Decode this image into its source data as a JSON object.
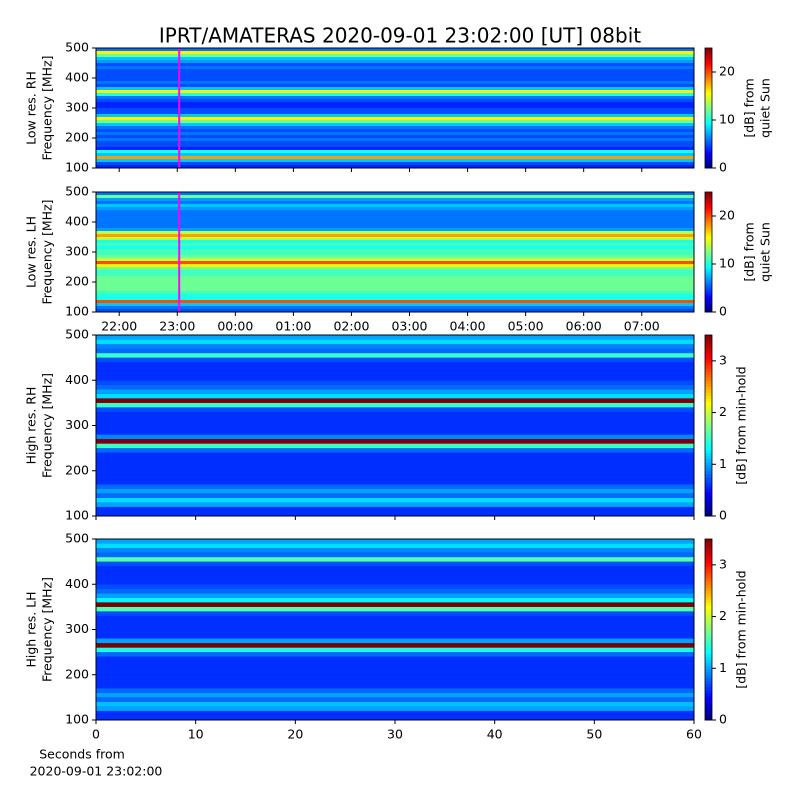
{
  "title": "IPRT/AMATERAS 2020-09-01 23:02:00 [UT]   08bit",
  "chart_data": [
    {
      "type": "heatmap",
      "cmap": "jet",
      "ylabel": [
        "Low res. RH",
        "Frequency [MHz]"
      ],
      "xlim": [
        21.6,
        31.9
      ],
      "xticks": [
        22,
        23,
        24,
        25,
        26,
        27,
        28,
        29,
        30,
        31
      ],
      "ylim": [
        100,
        500
      ],
      "yticks": [
        100,
        200,
        300,
        400,
        500
      ],
      "marker_x": 23.033,
      "marker_color": "#ff00ff",
      "y": [
        105,
        115,
        125,
        135,
        145,
        155,
        165,
        175,
        185,
        195,
        205,
        215,
        225,
        235,
        245,
        255,
        265,
        275,
        285,
        295,
        305,
        315,
        325,
        335,
        345,
        355,
        365,
        375,
        385,
        395,
        405,
        415,
        425,
        435,
        445,
        455,
        465,
        475,
        485,
        495
      ],
      "values": [
        4,
        5,
        8,
        18,
        8,
        10,
        4,
        5,
        5,
        6,
        5,
        6,
        5,
        6,
        8,
        12,
        16,
        8,
        5,
        5,
        4,
        4,
        5,
        6,
        10,
        16,
        8,
        5,
        6,
        5,
        5,
        5,
        5,
        6,
        5,
        7,
        8,
        12,
        16,
        6
      ],
      "colorbar": {
        "label": [
          "[dB] from",
          "quiet Sun"
        ],
        "lim": [
          0,
          25
        ],
        "ticks": [
          0,
          10,
          20
        ]
      }
    },
    {
      "type": "heatmap",
      "cmap": "jet",
      "ylabel": [
        "Low res. LH",
        "Frequency [MHz]"
      ],
      "xlim": [
        21.6,
        31.9
      ],
      "xticks": [
        {
          "value": 22,
          "label": "22:00"
        },
        {
          "value": 23,
          "label": "23:00"
        },
        {
          "value": 24,
          "label": "00:00"
        },
        {
          "value": 25,
          "label": "01:00"
        },
        {
          "value": 26,
          "label": "02:00"
        },
        {
          "value": 27,
          "label": "03:00"
        },
        {
          "value": 28,
          "label": "04:00"
        },
        {
          "value": 29,
          "label": "05:00"
        },
        {
          "value": 30,
          "label": "06:00"
        },
        {
          "value": 31,
          "label": "07:00"
        }
      ],
      "ylim": [
        100,
        500
      ],
      "yticks": [
        100,
        200,
        300,
        400,
        500
      ],
      "marker_x": 23.033,
      "marker_color": "#ff00ff",
      "y": [
        105,
        115,
        125,
        135,
        145,
        155,
        165,
        175,
        185,
        195,
        205,
        215,
        225,
        235,
        245,
        255,
        265,
        275,
        285,
        295,
        305,
        315,
        325,
        335,
        345,
        355,
        365,
        375,
        385,
        395,
        405,
        415,
        425,
        435,
        445,
        455,
        465,
        475,
        485,
        495
      ],
      "values": [
        5,
        6,
        8,
        20,
        10,
        10,
        11,
        12,
        12,
        12,
        12,
        12,
        11,
        11,
        12,
        16,
        20,
        14,
        12,
        11,
        11,
        10,
        11,
        10,
        14,
        18,
        14,
        7,
        6,
        6,
        6,
        6,
        6,
        6,
        7,
        8,
        6,
        7,
        12,
        6
      ],
      "colorbar": {
        "label": [
          "[dB] from",
          "quiet Sun"
        ],
        "lim": [
          0,
          25
        ],
        "ticks": [
          0,
          10,
          20
        ]
      }
    },
    {
      "type": "heatmap",
      "cmap": "jet",
      "ylabel": [
        "High res. RH",
        "Frequency [MHz]"
      ],
      "xlim": [
        0,
        60
      ],
      "xticks": [
        0,
        10,
        20,
        30,
        40,
        50,
        60
      ],
      "ylim": [
        100,
        500
      ],
      "yticks": [
        100,
        200,
        300,
        400,
        500
      ],
      "y": [
        105,
        115,
        125,
        135,
        145,
        155,
        165,
        175,
        185,
        195,
        205,
        215,
        225,
        235,
        245,
        255,
        265,
        275,
        285,
        295,
        305,
        315,
        325,
        335,
        345,
        355,
        365,
        375,
        385,
        395,
        405,
        415,
        425,
        435,
        445,
        455,
        465,
        475,
        485,
        495
      ],
      "values": [
        0.6,
        0.6,
        1.0,
        1.2,
        0.8,
        1.0,
        0.8,
        0.6,
        0.6,
        0.6,
        0.6,
        0.6,
        0.6,
        0.6,
        0.8,
        1.5,
        3.5,
        0.9,
        0.6,
        0.6,
        0.6,
        0.6,
        0.6,
        0.7,
        1.5,
        3.5,
        1.2,
        1.0,
        0.8,
        0.7,
        0.6,
        0.6,
        0.6,
        0.6,
        0.7,
        1.5,
        0.8,
        0.9,
        1.2,
        1.0
      ],
      "colorbar": {
        "label": [
          "[dB] from min-hold"
        ],
        "lim": [
          0,
          3.5
        ],
        "ticks": [
          0,
          1,
          2,
          3
        ]
      }
    },
    {
      "type": "heatmap",
      "cmap": "jet",
      "ylabel": [
        "High res. LH",
        "Frequency [MHz]"
      ],
      "xlim": [
        0,
        60
      ],
      "xticks": [
        0,
        10,
        20,
        30,
        40,
        50,
        60
      ],
      "ylim": [
        100,
        500
      ],
      "yticks": [
        100,
        200,
        300,
        400,
        500
      ],
      "xlabel": [
        "Seconds from",
        "2020-09-01 23:02:00"
      ],
      "y": [
        105,
        115,
        125,
        135,
        145,
        155,
        165,
        175,
        185,
        195,
        205,
        215,
        225,
        235,
        245,
        255,
        265,
        275,
        285,
        295,
        305,
        315,
        325,
        335,
        345,
        355,
        365,
        375,
        385,
        395,
        405,
        415,
        425,
        435,
        445,
        455,
        465,
        475,
        485,
        495
      ],
      "values": [
        0.6,
        0.6,
        1.0,
        1.1,
        0.8,
        1.0,
        0.8,
        0.6,
        0.6,
        0.6,
        0.6,
        0.6,
        0.6,
        0.6,
        0.8,
        1.4,
        3.5,
        1.0,
        0.6,
        0.6,
        0.6,
        0.6,
        0.6,
        0.7,
        1.6,
        3.5,
        1.3,
        1.0,
        0.8,
        0.7,
        0.6,
        0.6,
        0.6,
        0.6,
        0.7,
        1.6,
        0.8,
        0.9,
        1.2,
        1.0
      ],
      "colorbar": {
        "label": [
          "[dB] from min-hold"
        ],
        "lim": [
          0,
          3.5
        ],
        "ticks": [
          0,
          1,
          2,
          3
        ]
      }
    }
  ]
}
